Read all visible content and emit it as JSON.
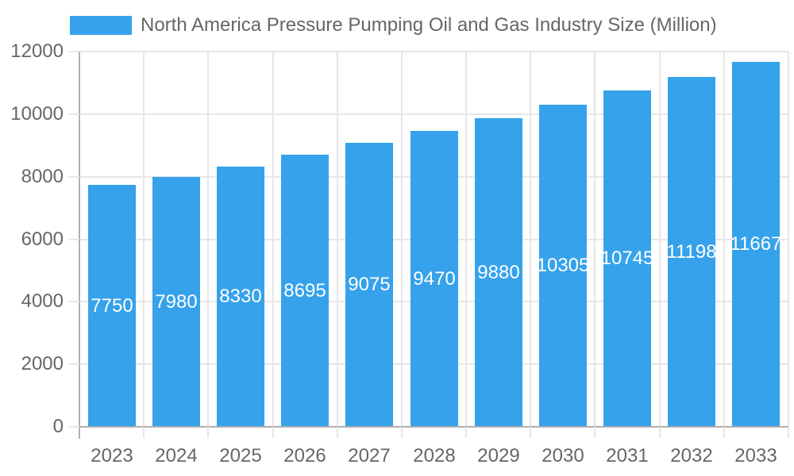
{
  "legend": {
    "label": "North America Pressure Pumping Oil and Gas Industry Size (Million)"
  },
  "chart_data": {
    "type": "bar",
    "title": "North America Pressure Pumping Oil and Gas Industry Size (Million)",
    "categories": [
      "2023",
      "2024",
      "2025",
      "2026",
      "2027",
      "2028",
      "2029",
      "2030",
      "2031",
      "2032",
      "2033"
    ],
    "series": [
      {
        "name": "North America Pressure Pumping Oil and Gas Industry Size (Million)",
        "values": [
          7750,
          7980,
          8330,
          8695,
          9075,
          9470,
          9880,
          10305,
          10745,
          11198,
          11667
        ]
      }
    ],
    "value_labels_shown": true,
    "xlabel": "",
    "ylabel": "",
    "ylim": [
      0,
      12000
    ],
    "yticks": [
      0,
      2000,
      4000,
      6000,
      8000,
      10000,
      12000
    ],
    "grid": "both",
    "legend_position": "top",
    "colors": {
      "bar": "#36A2EB",
      "axis_text": "#666666",
      "grid": "#e6e6e6",
      "axis_line": "#b0b0b0",
      "value_label": "#ffffff",
      "background": "#ffffff"
    }
  }
}
